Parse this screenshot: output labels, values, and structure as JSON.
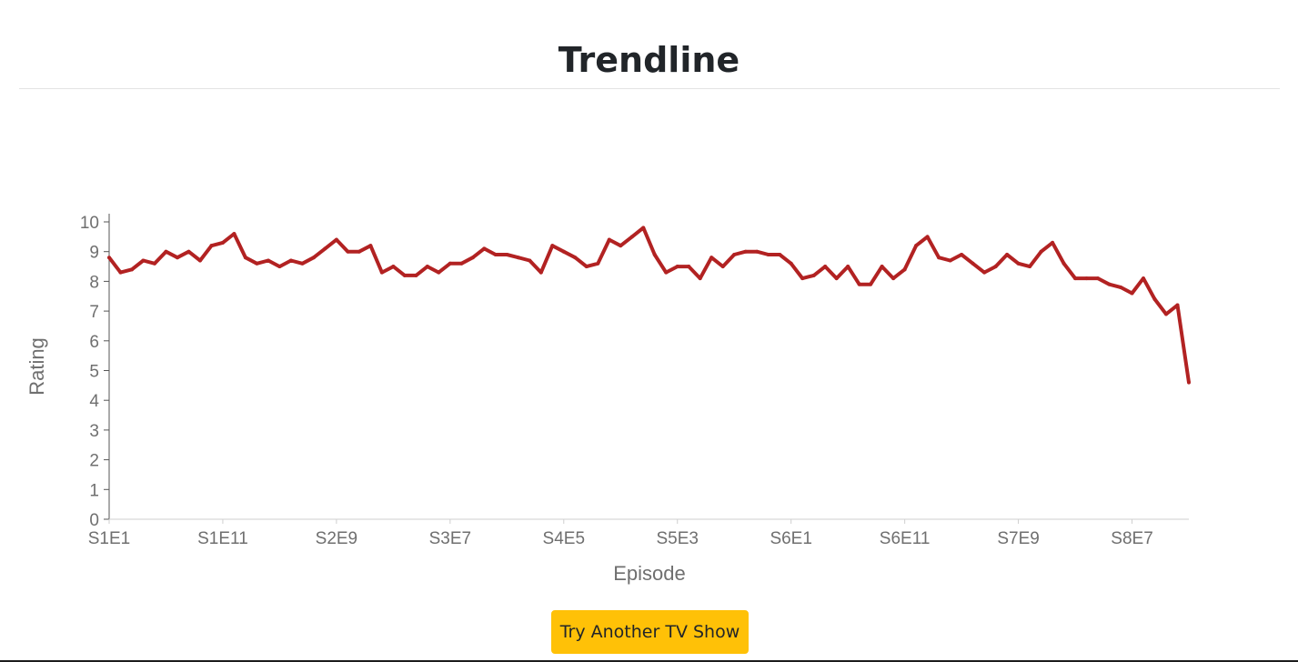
{
  "header": {
    "title": "Trendline"
  },
  "button": {
    "label": "Try Another TV Show"
  },
  "colors": {
    "line": "#b22222",
    "button": "#ffc107",
    "axis_text": "#6f6f6f"
  },
  "chart_data": {
    "type": "line",
    "xlabel": "Episode",
    "ylabel": "Rating",
    "ylim": [
      0,
      10
    ],
    "yticks": [
      0,
      1,
      2,
      3,
      4,
      5,
      6,
      7,
      8,
      9,
      10
    ],
    "xtick_labels": [
      "S1E1",
      "S1E11",
      "S2E9",
      "S3E7",
      "S4E5",
      "S5E3",
      "S6E1",
      "S6E11",
      "S7E9",
      "S8E7"
    ],
    "grid": false,
    "legend": "none",
    "series": [
      {
        "values": [
          8.8,
          8.3,
          8.4,
          8.7,
          8.6,
          9.0,
          8.8,
          9.0,
          8.7,
          9.2,
          9.3,
          9.6,
          8.8,
          8.6,
          8.7,
          8.5,
          8.7,
          8.6,
          8.8,
          9.1,
          9.4,
          9.0,
          9.0,
          9.2,
          8.3,
          8.5,
          8.2,
          8.2,
          8.5,
          8.3,
          8.6,
          8.6,
          8.8,
          9.1,
          8.9,
          8.9,
          8.8,
          8.7,
          8.3,
          9.2,
          9.0,
          8.8,
          8.5,
          8.6,
          9.4,
          9.2,
          9.5,
          9.8,
          8.9,
          8.3,
          8.5,
          8.5,
          8.1,
          8.8,
          8.5,
          8.9,
          9.0,
          9.0,
          8.9,
          8.9,
          8.6,
          8.1,
          8.2,
          8.5,
          8.1,
          8.5,
          7.9,
          7.9,
          8.5,
          8.1,
          8.4,
          9.2,
          9.5,
          8.8,
          8.7,
          8.9,
          8.6,
          8.3,
          8.5,
          8.9,
          8.6,
          8.5,
          9.0,
          9.3,
          8.6,
          8.1,
          8.1,
          8.1,
          7.9,
          7.8,
          7.6,
          8.1,
          7.4,
          6.9,
          7.2,
          4.6
        ]
      }
    ]
  }
}
